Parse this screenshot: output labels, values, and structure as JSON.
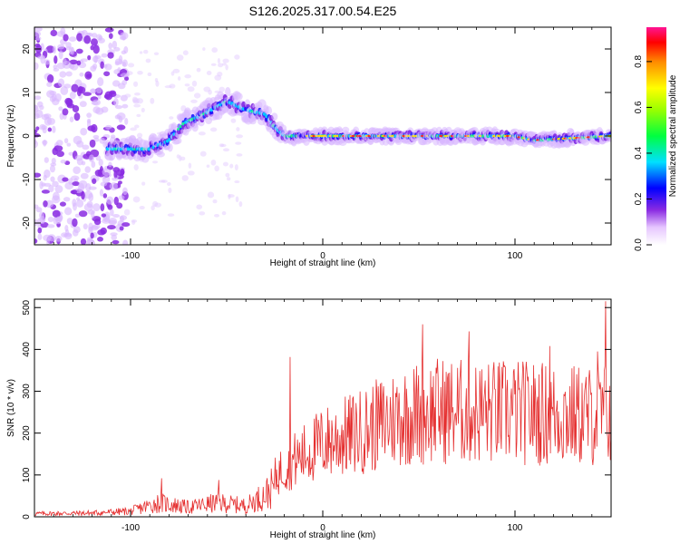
{
  "title": "S126.2025.317.00.54.E25",
  "chart_data": [
    {
      "type": "heatmap",
      "xlabel": "Height of straight line (km)",
      "ylabel": "Frequency (Hz)",
      "xlim": [
        -150,
        150
      ],
      "ylim": [
        -25,
        25
      ],
      "xticks": [
        -100,
        0,
        100
      ],
      "yticks": [
        -20,
        -10,
        0,
        10,
        20
      ],
      "colorbar": {
        "label": "Normalized spectral amplitude",
        "range": [
          0,
          0.95
        ],
        "ticks": [
          0.0,
          0.2,
          0.4,
          0.6,
          0.8
        ]
      },
      "ridge": [
        {
          "x": -110,
          "f": -3
        },
        {
          "x": -90,
          "f": -3
        },
        {
          "x": -80,
          "f": -1
        },
        {
          "x": -72,
          "f": 3
        },
        {
          "x": -62,
          "f": 5
        },
        {
          "x": -50,
          "f": 8
        },
        {
          "x": -40,
          "f": 6
        },
        {
          "x": -30,
          "f": 5
        },
        {
          "x": -25,
          "f": 2
        },
        {
          "x": -20,
          "f": 0
        },
        {
          "x": 0,
          "f": 0
        },
        {
          "x": 50,
          "f": 0
        },
        {
          "x": 100,
          "f": 0
        },
        {
          "x": 110,
          "f": -1
        },
        {
          "x": 150,
          "f": 0
        }
      ]
    },
    {
      "type": "line",
      "xlabel": "Height of straight line (km)",
      "ylabel": "SNR (10 * v/v)",
      "xlim": [
        -150,
        150
      ],
      "ylim": [
        0,
        520
      ],
      "xticks": [
        -100,
        0,
        100
      ],
      "yticks": [
        0,
        100,
        200,
        300,
        400,
        500
      ],
      "color": "#e53030",
      "envelope": [
        {
          "x": -150,
          "y": 10
        },
        {
          "x": -120,
          "y": 12
        },
        {
          "x": -100,
          "y": 18
        },
        {
          "x": -85,
          "y": 45
        },
        {
          "x": -70,
          "y": 30
        },
        {
          "x": -55,
          "y": 45
        },
        {
          "x": -40,
          "y": 35
        },
        {
          "x": -30,
          "y": 70
        },
        {
          "x": -20,
          "y": 130
        },
        {
          "x": -10,
          "y": 160
        },
        {
          "x": 0,
          "y": 190
        },
        {
          "x": 20,
          "y": 220
        },
        {
          "x": 40,
          "y": 260
        },
        {
          "x": 60,
          "y": 275
        },
        {
          "x": 80,
          "y": 270
        },
        {
          "x": 100,
          "y": 270
        },
        {
          "x": 120,
          "y": 265
        },
        {
          "x": 140,
          "y": 260
        },
        {
          "x": 150,
          "y": 270
        }
      ],
      "peaks": [
        {
          "x": -84,
          "y": 92
        },
        {
          "x": -54,
          "y": 88
        },
        {
          "x": -17,
          "y": 382
        },
        {
          "x": 52,
          "y": 460
        },
        {
          "x": 76,
          "y": 443
        },
        {
          "x": 118,
          "y": 408
        },
        {
          "x": 143,
          "y": 395
        },
        {
          "x": 147,
          "y": 515
        }
      ]
    }
  ]
}
